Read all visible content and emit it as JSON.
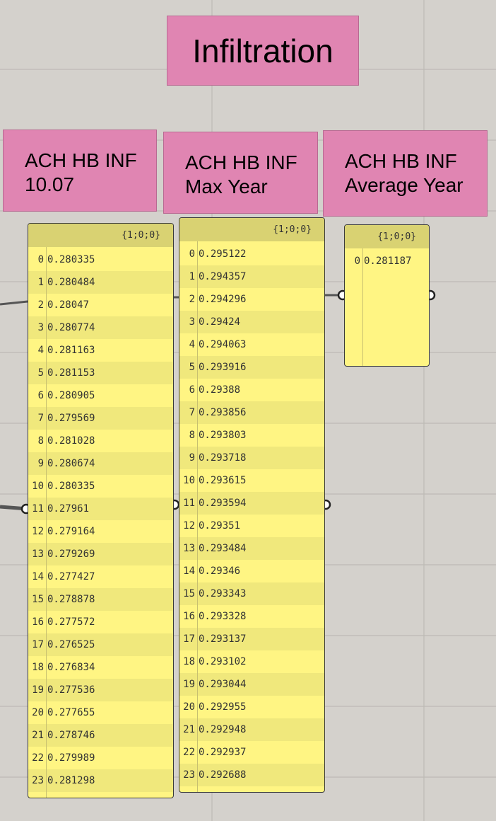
{
  "title": "Infiltration",
  "groups": [
    {
      "lines": [
        "ACH HB INF",
        "10.07"
      ]
    },
    {
      "lines": [
        "ACH HB INF",
        "Max Year"
      ]
    },
    {
      "lines": [
        "ACH HB INF",
        "Average Year"
      ]
    }
  ],
  "panels": [
    {
      "header": "{1;0;0}",
      "indices": [
        0,
        1,
        2,
        3,
        4,
        5,
        6,
        7,
        8,
        9,
        10,
        11,
        12,
        13,
        14,
        15,
        16,
        17,
        18,
        19,
        20,
        21,
        22,
        23
      ],
      "values": [
        0.280335,
        0.280484,
        0.28047,
        0.280774,
        0.281163,
        0.281153,
        0.280905,
        0.279569,
        0.281028,
        0.280674,
        0.280335,
        0.27961,
        0.279164,
        0.279269,
        0.277427,
        0.278878,
        0.277572,
        0.276525,
        0.276834,
        0.277536,
        0.277655,
        0.278746,
        0.279989,
        0.281298
      ]
    },
    {
      "header": "{1;0;0}",
      "indices": [
        0,
        1,
        2,
        3,
        4,
        5,
        6,
        7,
        8,
        9,
        10,
        11,
        12,
        13,
        14,
        15,
        16,
        17,
        18,
        19,
        20,
        21,
        22,
        23
      ],
      "values": [
        0.295122,
        0.294357,
        0.294296,
        0.29424,
        0.294063,
        0.293916,
        0.29388,
        0.293856,
        0.293803,
        0.293718,
        0.293615,
        0.293594,
        0.29351,
        0.293484,
        0.29346,
        0.293343,
        0.293328,
        0.293137,
        0.293102,
        0.293044,
        0.292955,
        0.292948,
        0.292937,
        0.292688
      ]
    },
    {
      "header": "{1;0;0}",
      "indices": [
        0
      ],
      "values": [
        0.281187
      ]
    }
  ]
}
